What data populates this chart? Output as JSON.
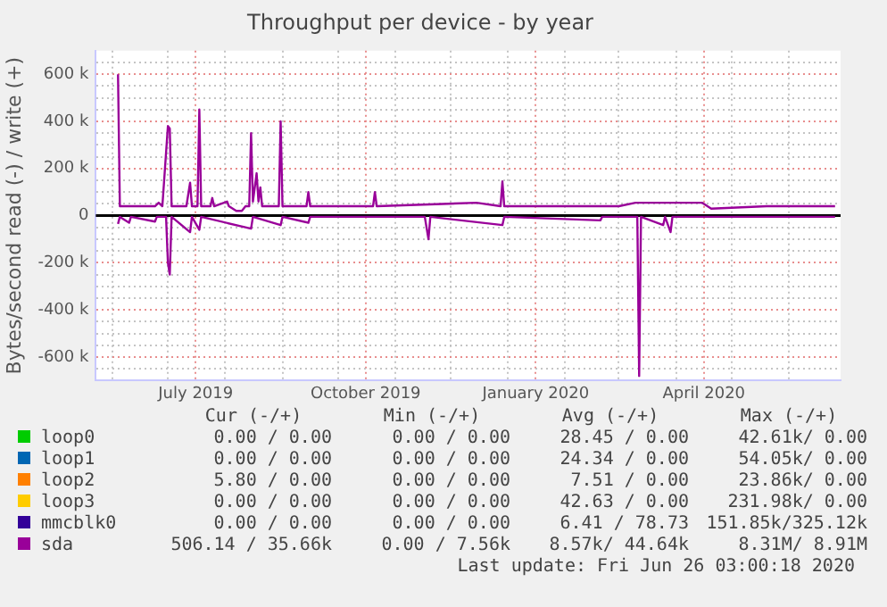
{
  "chart_data": {
    "type": "line",
    "title": "Throughput per device - by year",
    "ylabel": "Bytes/second read (-) / write (+)",
    "xlim": [
      "2019-05-23",
      "2020-06-29"
    ],
    "xticks": [
      {
        "value": "2019-06-01",
        "label": null
      },
      {
        "value": "2019-07-01",
        "label": null
      },
      {
        "value": "2019-07-16",
        "label": "July 2019"
      },
      {
        "value": "2019-08-01",
        "label": null
      },
      {
        "value": "2019-09-01",
        "label": null
      },
      {
        "value": "2019-10-01",
        "label": null
      },
      {
        "value": "2019-10-16",
        "label": "October 2019"
      },
      {
        "value": "2019-11-01",
        "label": null
      },
      {
        "value": "2019-12-01",
        "label": null
      },
      {
        "value": "2020-01-01",
        "label": null
      },
      {
        "value": "2020-01-16",
        "label": "January 2020"
      },
      {
        "value": "2020-02-01",
        "label": null
      },
      {
        "value": "2020-03-01",
        "label": null
      },
      {
        "value": "2020-04-01",
        "label": null
      },
      {
        "value": "2020-04-16",
        "label": "April 2020"
      },
      {
        "value": "2020-05-01",
        "label": null
      },
      {
        "value": "2020-06-01",
        "label": null
      }
    ],
    "ylim": [
      -700000,
      700000
    ],
    "yticks": [
      {
        "value": -650000,
        "label": null
      },
      {
        "value": -600000,
        "label": "-600 k"
      },
      {
        "value": -550000,
        "label": null
      },
      {
        "value": -500000,
        "label": null
      },
      {
        "value": -450000,
        "label": null
      },
      {
        "value": -400000,
        "label": "-400 k"
      },
      {
        "value": -350000,
        "label": null
      },
      {
        "value": -300000,
        "label": null
      },
      {
        "value": -250000,
        "label": null
      },
      {
        "value": -200000,
        "label": "-200 k"
      },
      {
        "value": -150000,
        "label": null
      },
      {
        "value": -100000,
        "label": null
      },
      {
        "value": -50000,
        "label": null
      },
      0,
      {
        "value": 50000,
        "label": null
      },
      {
        "value": 100000,
        "label": null
      },
      {
        "value": 150000,
        "label": null
      },
      {
        "value": 200000,
        "label": "200 k"
      },
      {
        "value": 250000,
        "label": null
      },
      {
        "value": 300000,
        "label": null
      },
      {
        "value": 350000,
        "label": null
      },
      {
        "value": 400000,
        "label": "400 k"
      },
      {
        "value": 450000,
        "label": null
      },
      {
        "value": 500000,
        "label": null
      },
      {
        "value": 550000,
        "label": null
      },
      {
        "value": 600000,
        "label": "600 k"
      },
      {
        "value": 650000,
        "label": null
      }
    ],
    "grid": true,
    "legend": "bottom",
    "ref_lines": [
      {
        "axis": "y",
        "value": 0,
        "color": "#000000"
      }
    ],
    "series": [
      {
        "name": "loop0",
        "color": "#00cc00"
      },
      {
        "name": "loop1",
        "color": "#0066b3"
      },
      {
        "name": "loop2",
        "color": "#ff8000"
      },
      {
        "name": "loop3",
        "color": "#ffcc00"
      },
      {
        "name": "mmcblk0",
        "color": "#330099"
      },
      {
        "name": "sda",
        "color": "#990099",
        "x": [
          "2019-06-04",
          "2019-06-05",
          "2019-06-24",
          "2019-06-26",
          "2019-06-28",
          "2019-07-01",
          "2019-07-02",
          "2019-07-03",
          "2019-07-11",
          "2019-07-13",
          "2019-07-14",
          "2019-07-17",
          "2019-07-18",
          "2019-07-19",
          "2019-07-24",
          "2019-07-25",
          "2019-07-26",
          "2019-08-02",
          "2019-08-03",
          "2019-08-07",
          "2019-08-10",
          "2019-08-12",
          "2019-08-14",
          "2019-08-15",
          "2019-08-16",
          "2019-08-18",
          "2019-08-19",
          "2019-08-20",
          "2019-08-21",
          "2019-08-30",
          "2019-08-31",
          "2019-09-01",
          "2019-09-14",
          "2019-09-15",
          "2019-09-16",
          "2019-10-20",
          "2019-10-21",
          "2019-10-22",
          "2019-12-15",
          "2019-12-28",
          "2019-12-29",
          "2019-12-30",
          "2020-03-01",
          "2020-03-10",
          "2020-04-15",
          "2020-04-20",
          "2020-05-20",
          "2020-06-26"
        ],
        "values": [
          600000,
          40000,
          40000,
          55000,
          40000,
          380000,
          370000,
          40000,
          40000,
          140000,
          40000,
          40000,
          450000,
          40000,
          40000,
          75000,
          40000,
          60000,
          40000,
          20000,
          20000,
          40000,
          40000,
          350000,
          60000,
          180000,
          60000,
          120000,
          40000,
          40000,
          400000,
          40000,
          40000,
          100000,
          40000,
          40000,
          100000,
          40000,
          55000,
          40000,
          145000,
          40000,
          40000,
          55000,
          55000,
          30000,
          40000,
          40000
        ]
      },
      {
        "color": "#990099",
        "x": [
          "2019-06-04",
          "2019-06-05",
          "2019-06-10",
          "2019-06-11",
          "2019-06-24",
          "2019-06-25",
          "2019-06-30",
          "2019-07-01",
          "2019-07-02",
          "2019-07-03",
          "2019-07-13",
          "2019-07-14",
          "2019-07-18",
          "2019-07-19",
          "2019-08-15",
          "2019-08-16",
          "2019-08-31",
          "2019-09-01",
          "2019-09-15",
          "2019-09-16",
          "2019-11-17",
          "2019-11-19",
          "2019-11-20",
          "2019-12-29",
          "2019-12-30",
          "2020-02-20",
          "2020-02-21",
          "2020-03-11",
          "2020-03-12",
          "2020-03-13",
          "2020-03-25",
          "2020-03-26",
          "2020-03-29",
          "2020-03-30",
          "2020-06-26"
        ],
        "values": [
          -35000,
          -5000,
          -30000,
          -5000,
          -25000,
          -5000,
          -5000,
          -200000,
          -250000,
          -5000,
          -70000,
          -5000,
          -60000,
          -5000,
          -55000,
          -5000,
          -40000,
          -5000,
          -30000,
          -5000,
          -5000,
          -100000,
          -5000,
          -40000,
          -5000,
          -20000,
          -5000,
          -5000,
          -680000,
          -5000,
          -40000,
          -5000,
          -70000,
          -5000,
          -5000
        ]
      }
    ],
    "annotations": [
      "Cur (-/+)",
      "Min (-/+)",
      "Avg (-/+)",
      "Max (-/+)",
      "0.00 / 0.00",
      "0.00 / 0.00",
      "28.45 / 0.00",
      "42.61k/ 0.00",
      "0.00 / 0.00",
      "0.00 / 0.00",
      "24.34 / 0.00",
      "54.05k/ 0.00",
      "5.80 / 0.00",
      "0.00 / 0.00",
      "7.51 / 0.00",
      "23.86k/ 0.00",
      "0.00 / 0.00",
      "0.00 / 0.00",
      "42.63 / 0.00",
      "231.98k/ 0.00",
      "0.00 / 0.00",
      "0.00 / 0.00",
      "6.41 / 78.73",
      "151.85k/325.12k",
      "506.14 / 35.66k",
      "0.00 / 7.56k",
      "8.57k/ 44.64k",
      "8.31M/ 8.91M",
      "Last update: Fri Jun 26 03:00:18 2020"
    ]
  }
}
